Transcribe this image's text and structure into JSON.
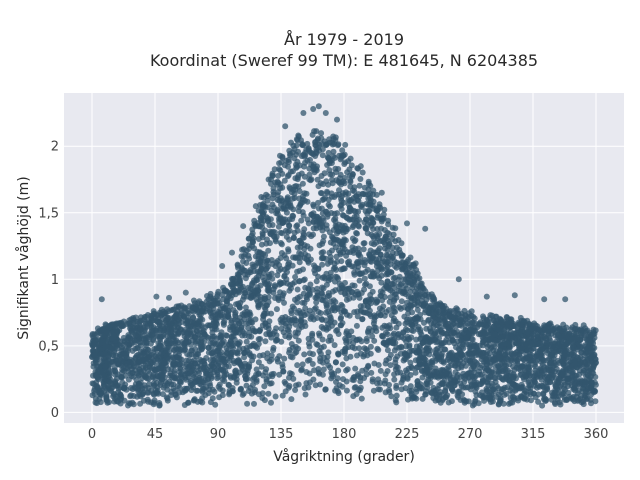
{
  "chart_data": {
    "type": "scatter",
    "title": "År 1979 - 2019",
    "subtitle": "Koordinat (Sweref 99 TM): E 481645, N 6204385",
    "xlabel": "Vågriktning (grader)",
    "ylabel": "Signifikant våghöjd (m)",
    "xlim": [
      -20,
      380
    ],
    "ylim": [
      -0.08,
      2.4
    ],
    "x_ticks": [
      0,
      45,
      90,
      135,
      180,
      225,
      270,
      315,
      360
    ],
    "x_tick_labels": [
      "0",
      "45",
      "90",
      "135",
      "180",
      "225",
      "270",
      "315",
      "360"
    ],
    "y_ticks": [
      0,
      0.5,
      1,
      1.5,
      2
    ],
    "y_tick_labels": [
      "0",
      "0,5",
      "1",
      "1,5",
      "2"
    ],
    "grid": true,
    "marker_color": "#33566d",
    "plot_background": "#e8e9f0",
    "grid_color": "#ffffff",
    "upper_envelope": {
      "direction_deg": [
        0,
        15,
        30,
        45,
        60,
        75,
        90,
        100,
        110,
        120,
        130,
        140,
        150,
        160,
        170,
        180,
        190,
        200,
        210,
        220,
        230,
        240,
        250,
        260,
        270,
        285,
        300,
        315,
        330,
        345,
        360
      ],
      "height_m": [
        0.62,
        0.7,
        0.72,
        0.78,
        0.82,
        0.86,
        0.92,
        1.05,
        1.3,
        1.6,
        1.95,
        2.1,
        2.15,
        2.2,
        2.15,
        2.05,
        1.9,
        1.75,
        1.55,
        1.35,
        1.15,
        0.95,
        0.85,
        0.8,
        0.78,
        0.75,
        0.72,
        0.7,
        0.68,
        0.66,
        0.65
      ]
    },
    "lower_envelope": {
      "direction_deg": [
        0,
        90,
        180,
        270,
        360
      ],
      "height_m": [
        0.05,
        0.05,
        0.08,
        0.05,
        0.05
      ]
    },
    "outliers": [
      {
        "x": 7,
        "y": 0.85
      },
      {
        "x": 46,
        "y": 0.87
      },
      {
        "x": 55,
        "y": 0.86
      },
      {
        "x": 67,
        "y": 0.9
      },
      {
        "x": 93,
        "y": 1.1
      },
      {
        "x": 100,
        "y": 1.2
      },
      {
        "x": 108,
        "y": 1.4
      },
      {
        "x": 117,
        "y": 1.55
      },
      {
        "x": 138,
        "y": 2.15
      },
      {
        "x": 151,
        "y": 2.25
      },
      {
        "x": 158,
        "y": 2.28
      },
      {
        "x": 162,
        "y": 2.3
      },
      {
        "x": 167,
        "y": 2.25
      },
      {
        "x": 175,
        "y": 2.2
      },
      {
        "x": 192,
        "y": 1.85
      },
      {
        "x": 207,
        "y": 1.65
      },
      {
        "x": 225,
        "y": 1.42
      },
      {
        "x": 238,
        "y": 1.38
      },
      {
        "x": 262,
        "y": 1.0
      },
      {
        "x": 282,
        "y": 0.87
      },
      {
        "x": 302,
        "y": 0.88
      },
      {
        "x": 323,
        "y": 0.85
      },
      {
        "x": 338,
        "y": 0.85
      }
    ]
  }
}
